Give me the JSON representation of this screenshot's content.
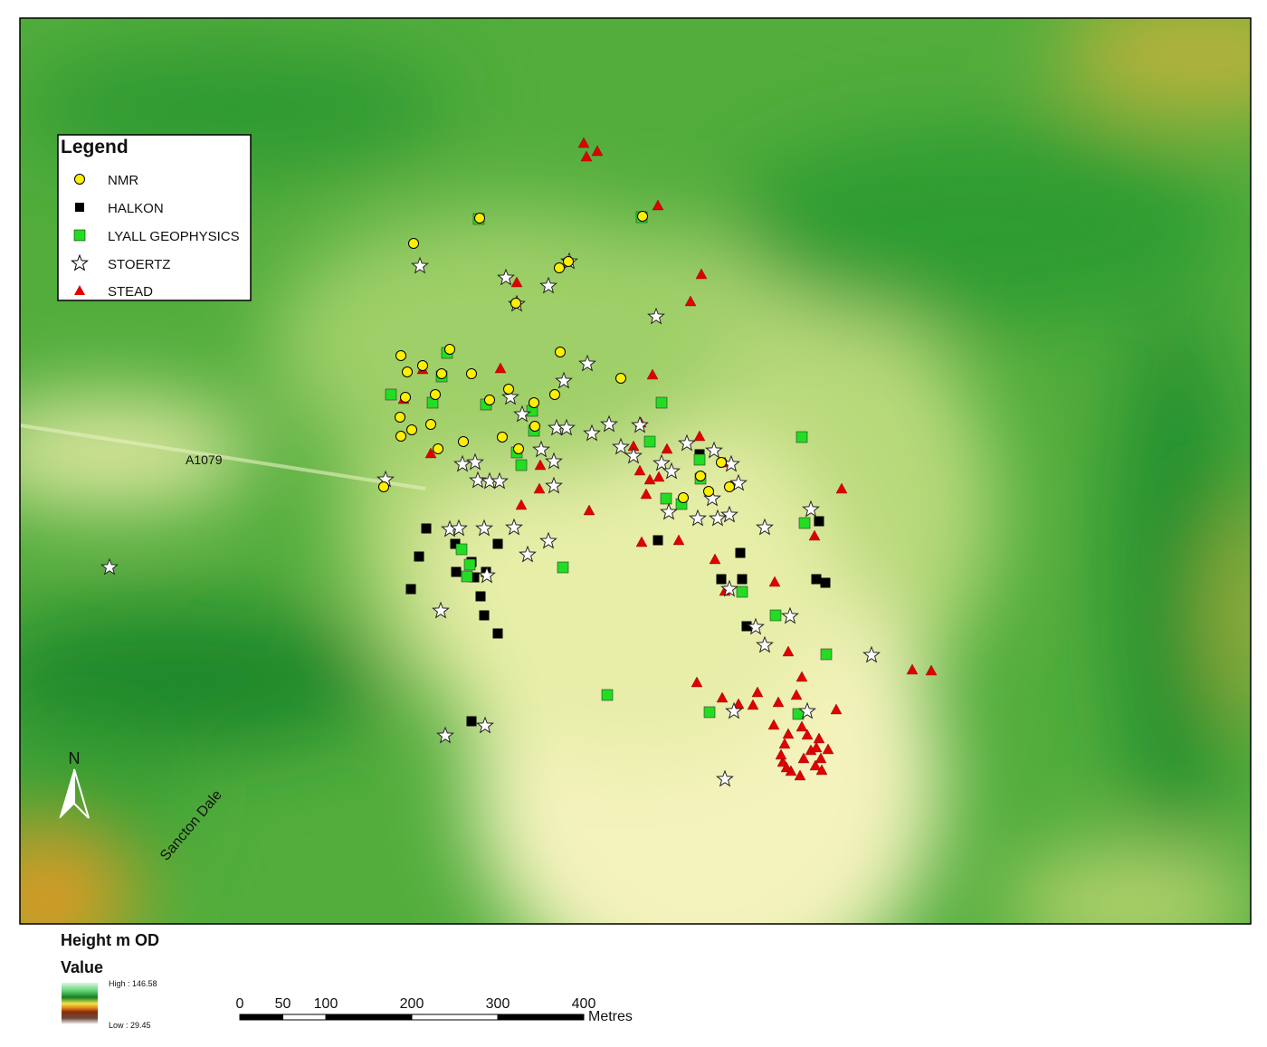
{
  "legend": {
    "title": "Legend",
    "items": [
      "NMR",
      "HALKON",
      "LYALL GEOPHYSICS",
      "STOERTZ",
      "STEAD"
    ]
  },
  "map_labels": {
    "road": "A1079",
    "valley": "Sancton Dale",
    "north": "N"
  },
  "height_legend": {
    "title": "Height m OD",
    "subtitle": "Value",
    "high": "High : 146.58",
    "low": "Low : 29.45"
  },
  "scale_bar": {
    "ticks": [
      0,
      50,
      100,
      200,
      300,
      400
    ],
    "unit": "Metres"
  }
}
